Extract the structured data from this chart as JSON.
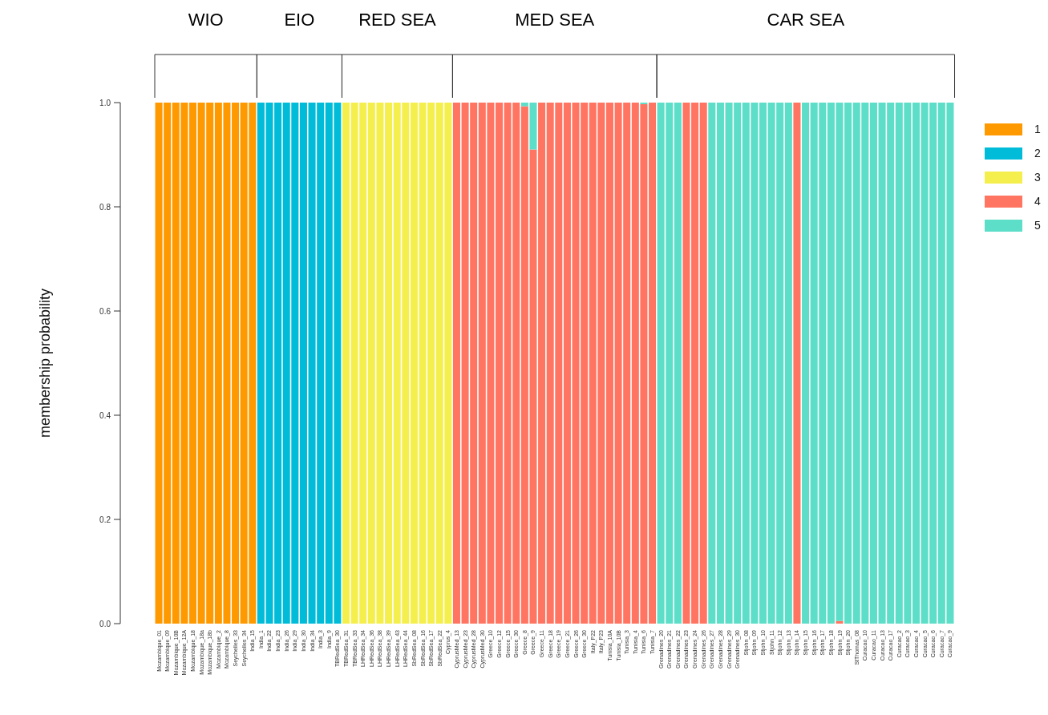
{
  "chart_data": {
    "type": "bar",
    "stacked": true,
    "ylabel": "membership probability",
    "categories": [
      "Mozambique_01",
      "Mozambique_09",
      "Mozambique_10B",
      "Mozambique_12A",
      "Mozambique_18",
      "Mozambique_18a",
      "Mozambique_18b",
      "Mozambique_2",
      "Mozambique_8",
      "Seychelles_33",
      "Seychelles_34",
      "India_15",
      "India_1",
      "India_22",
      "India_23",
      "India_26",
      "India_29",
      "India_30",
      "India_34",
      "India_3",
      "India_9",
      "TBRedSea_30",
      "TBRedSea_31",
      "TBRedSea_33",
      "LHRedSea_34",
      "LHRedSea_36",
      "LHRedSea_38",
      "LHRedSea_39",
      "LHRedSea_43",
      "LHRedSea_44",
      "SbRedSea_08",
      "SbRedSea_16",
      "SbRedSea_17",
      "SbRedSea_22",
      "Cyprus_4",
      "CyprusMed_13",
      "CyprusMed_23",
      "CyprusMed_28",
      "CyprusMed_30",
      "Greece_10",
      "Greece_12",
      "Greece_15",
      "Greece_30",
      "Greece_8",
      "Greece_9",
      "Greece_11",
      "Greece_18",
      "Greece_19",
      "Greece_21",
      "Greece_26",
      "Greece_30",
      "Italy_P22",
      "Italy_P23",
      "Tunisia_10A",
      "Tunisia_10B",
      "Tunisia_3",
      "Tunisia_4",
      "Tunisia_6",
      "Tunisia_7",
      "Grenadines_20",
      "Grenadines_21",
      "Grenadines_22",
      "Grenadines_23",
      "Grenadines_24",
      "Grenadines_26",
      "Grenadines_27",
      "Grenadines_28",
      "Grenadines_29",
      "Grenadines_30",
      "Stjohn_08",
      "Stjohn_09",
      "Stjohn_10",
      "Stjohn_11",
      "Stjohn_12",
      "Stjohn_13",
      "Stjohn_14",
      "Stjohn_15",
      "Stjohn_16",
      "Stjohn_17",
      "Stjohn_18",
      "Stjohn_19",
      "Stjohn_20",
      "StThomas_08",
      "Curacao_10",
      "Curacao_11",
      "Curacao_13",
      "Curacao_17",
      "Curacao_2",
      "Curacao_3",
      "Curacao_4",
      "Curacao_5",
      "Curacao_6",
      "Curacao_7",
      "Curacao_9"
    ],
    "series": [
      {
        "name": "1",
        "color": "#ff9900",
        "values": [
          1,
          1,
          1,
          1,
          1,
          1,
          1,
          1,
          1,
          1,
          1,
          1,
          0,
          0,
          0,
          0,
          0,
          0,
          0,
          0,
          0,
          0,
          0,
          0,
          0,
          0,
          0,
          0,
          0,
          0,
          0,
          0,
          0,
          0,
          0,
          0,
          0,
          0,
          0,
          0,
          0,
          0,
          0,
          0,
          0,
          0,
          0,
          0,
          0,
          0,
          0,
          0,
          0,
          0,
          0,
          0,
          0,
          0,
          0,
          0,
          0,
          0,
          0,
          0,
          0,
          0,
          0,
          0,
          0,
          0,
          0,
          0,
          0,
          0,
          0,
          0,
          0,
          0,
          0,
          0,
          0,
          0,
          0,
          0,
          0,
          0,
          0,
          0,
          0,
          0,
          0,
          0,
          0,
          0
        ]
      },
      {
        "name": "2",
        "color": "#00bcd8",
        "values": [
          0,
          0,
          0,
          0,
          0,
          0,
          0,
          0,
          0,
          0,
          0,
          0,
          1,
          1,
          1,
          1,
          1,
          1,
          1,
          1,
          1,
          1,
          0,
          0,
          0,
          0,
          0,
          0,
          0,
          0,
          0,
          0,
          0,
          0,
          0,
          0,
          0,
          0,
          0,
          0,
          0,
          0,
          0,
          0,
          0,
          0,
          0,
          0,
          0,
          0,
          0,
          0,
          0,
          0,
          0,
          0,
          0,
          0,
          0,
          0,
          0,
          0,
          0,
          0,
          0,
          0,
          0,
          0,
          0,
          0,
          0,
          0,
          0,
          0,
          0,
          0,
          0,
          0,
          0,
          0,
          0,
          0,
          0,
          0,
          0,
          0,
          0,
          0,
          0,
          0,
          0,
          0,
          0,
          0
        ]
      },
      {
        "name": "3",
        "color": "#f5ef4e",
        "values": [
          0,
          0,
          0,
          0,
          0,
          0,
          0,
          0,
          0,
          0,
          0,
          0,
          0,
          0,
          0,
          0,
          0,
          0,
          0,
          0,
          0,
          0,
          1,
          1,
          1,
          1,
          1,
          1,
          1,
          1,
          1,
          1,
          1,
          1,
          1,
          0,
          0,
          0,
          0,
          0,
          0,
          0,
          0,
          0,
          0,
          0,
          0,
          0,
          0,
          0,
          0,
          0,
          0,
          0,
          0,
          0,
          0,
          0,
          0,
          0,
          0,
          0,
          0,
          0,
          0,
          0,
          0,
          0,
          0,
          0,
          0,
          0,
          0,
          0,
          0,
          0,
          0,
          0,
          0,
          0,
          0,
          0,
          0,
          0,
          0,
          0,
          0,
          0,
          0,
          0,
          0,
          0,
          0,
          0
        ]
      },
      {
        "name": "4",
        "color": "#ff7562",
        "values": [
          0,
          0,
          0,
          0,
          0,
          0,
          0,
          0,
          0,
          0,
          0,
          0,
          0,
          0,
          0,
          0,
          0,
          0,
          0,
          0,
          0,
          0,
          0,
          0,
          0,
          0,
          0,
          0,
          0,
          0,
          0,
          0,
          0,
          0,
          0,
          1,
          1,
          1,
          1,
          1,
          1,
          1,
          1,
          0.993,
          0.91,
          1,
          1,
          1,
          1,
          1,
          1,
          1,
          1,
          1,
          1,
          1,
          1,
          0.997,
          1,
          0,
          0,
          0,
          1,
          1,
          1,
          0,
          0,
          0,
          0,
          0,
          0,
          0,
          0,
          0,
          0,
          1,
          0,
          0,
          0,
          0,
          0.005,
          0,
          0,
          0,
          0,
          0,
          0,
          0,
          0,
          0,
          0,
          0,
          0,
          0
        ]
      },
      {
        "name": "5",
        "color": "#5cdec8",
        "values": [
          0,
          0,
          0,
          0,
          0,
          0,
          0,
          0,
          0,
          0,
          0,
          0,
          0,
          0,
          0,
          0,
          0,
          0,
          0,
          0,
          0,
          0,
          0,
          0,
          0,
          0,
          0,
          0,
          0,
          0,
          0,
          0,
          0,
          0,
          0,
          0,
          0,
          0,
          0,
          0,
          0,
          0,
          0,
          0.007,
          0.09,
          0,
          0,
          0,
          0,
          0,
          0,
          0,
          0,
          0,
          0,
          0,
          0,
          0.003,
          0,
          1,
          1,
          1,
          0,
          0,
          0,
          1,
          1,
          1,
          1,
          1,
          1,
          1,
          1,
          1,
          1,
          0,
          1,
          1,
          1,
          1,
          0.995,
          1,
          1,
          1,
          1,
          1,
          1,
          1,
          1,
          1,
          1,
          1,
          1,
          1
        ]
      }
    ],
    "ylim": [
      0,
      1
    ],
    "yticks": [
      {
        "value": 0,
        "label": "0.0"
      },
      {
        "value": 0.2,
        "label": "0.2"
      },
      {
        "value": 0.4,
        "label": "0.4"
      },
      {
        "value": 0.6,
        "label": "0.6"
      },
      {
        "value": 0.8,
        "label": "0.8"
      },
      {
        "value": 1,
        "label": "1.0"
      }
    ],
    "annotations": [
      "WIO",
      "EIO",
      "RED SEA",
      "MED SEA",
      "CAR SEA"
    ],
    "grid": false,
    "legend": "right"
  }
}
